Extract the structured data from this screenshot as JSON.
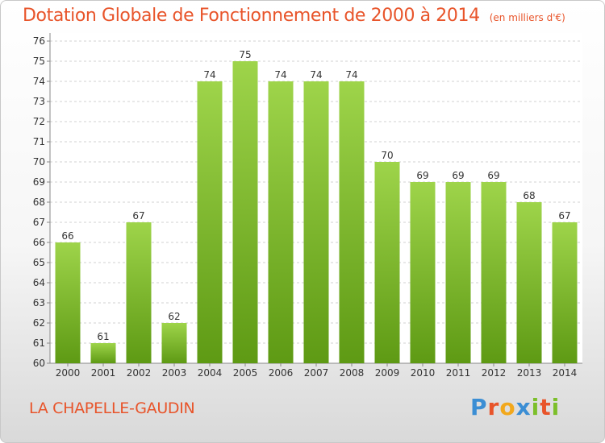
{
  "title": "Dotation Globale de Fonctionnement de 2000 à 2014",
  "unit": "(en milliers d'€)",
  "commune": "LA CHAPELLE-GAUDIN",
  "logo": "Proxiti",
  "colors": {
    "bar_light": "#9ed44a",
    "bar_dark": "#5e9a14",
    "title": "#e8542a"
  },
  "chart_data": {
    "type": "bar",
    "categories": [
      "2000",
      "2001",
      "2002",
      "2003",
      "2004",
      "2005",
      "2006",
      "2007",
      "2008",
      "2009",
      "2010",
      "2011",
      "2012",
      "2013",
      "2014"
    ],
    "values": [
      66,
      61,
      67,
      62,
      74,
      75,
      74,
      74,
      74,
      70,
      69,
      69,
      69,
      68,
      67
    ],
    "ylim": [
      60,
      76
    ],
    "yticks": [
      60,
      61,
      62,
      63,
      64,
      65,
      66,
      67,
      68,
      69,
      70,
      71,
      72,
      73,
      74,
      75,
      76
    ],
    "grid": true
  }
}
